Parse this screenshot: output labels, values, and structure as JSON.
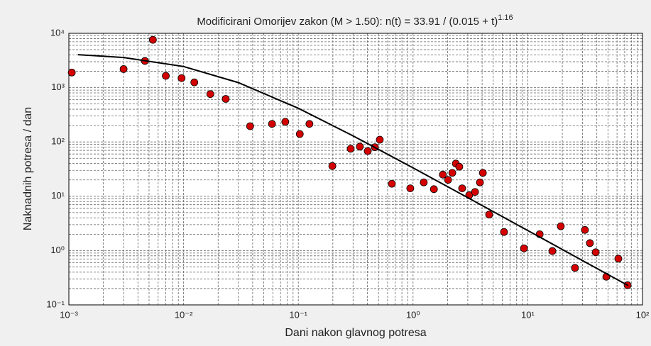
{
  "chart_data": {
    "type": "scatter",
    "title": "Modificirani Omorijev zakon (M > 1.50):   n(t) = 33.91 / (0.015 + t)",
    "title_superscript": "1.16",
    "x_label": "Dani nakon glavnog potresa",
    "y_label": "Naknadnih potresa / dan",
    "log_x": true,
    "log_y": true,
    "grid": true,
    "minor_grid": true,
    "xlim": [
      0.001,
      100
    ],
    "ylim": [
      0.1,
      10000
    ],
    "xticks": [
      {
        "value": 0.001,
        "label": "10⁻³"
      },
      {
        "value": 0.01,
        "label": "10⁻²"
      },
      {
        "value": 0.1,
        "label": "10⁻¹"
      },
      {
        "value": 1,
        "label": "10⁰"
      },
      {
        "value": 10,
        "label": "10¹"
      },
      {
        "value": 100,
        "label": "10²"
      }
    ],
    "yticks": [
      {
        "value": 0.1,
        "label": "10⁻¹"
      },
      {
        "value": 1,
        "label": "10⁰"
      },
      {
        "value": 10,
        "label": "10¹"
      },
      {
        "value": 100,
        "label": "10²"
      },
      {
        "value": 1000,
        "label": "10³"
      },
      {
        "value": 10000,
        "label": "10⁴"
      }
    ],
    "series": [
      {
        "color": "#d40000",
        "line": false,
        "x": [
          0.00106,
          0.003,
          0.0046,
          0.0054,
          0.007,
          0.0096,
          0.0124,
          0.0171,
          0.0233,
          0.038,
          0.059,
          0.077,
          0.103,
          0.125,
          0.198,
          0.286,
          0.344,
          0.403,
          0.465,
          0.513,
          0.654,
          0.946,
          1.24,
          1.52,
          1.82,
          2.02,
          2.2,
          2.36,
          2.53,
          2.68,
          3.09,
          3.47,
          3.83,
          4.06,
          4.61,
          6.21,
          9.27,
          12.7,
          16.4,
          19.4,
          25.8,
          31.5,
          34.8,
          39.1,
          48.4,
          61.6,
          74.2
        ],
        "values": [
          1900,
          2200,
          3100,
          7600,
          1650,
          1500,
          1250,
          760,
          620,
          195,
          215,
          235,
          140,
          215,
          36,
          75,
          82,
          68,
          80,
          110,
          17,
          14,
          18,
          13.5,
          25,
          20,
          27,
          40,
          35,
          14,
          10.5,
          12,
          18,
          27,
          4.6,
          2.2,
          1.1,
          2.0,
          0.98,
          2.8,
          0.48,
          2.4,
          1.37,
          0.93,
          0.33,
          0.71,
          0.23
        ]
      },
      {
        "color": "#000000",
        "line": true,
        "x": [
          0.0012,
          0.003,
          0.01,
          0.03,
          0.1,
          0.3,
          1,
          3,
          10,
          30,
          75
        ],
        "values": [
          4047,
          3582,
          2447,
          1238,
          416.8,
          129.5,
          33.33,
          9.43,
          2.342,
          0.6555,
          0.2265
        ]
      }
    ]
  }
}
